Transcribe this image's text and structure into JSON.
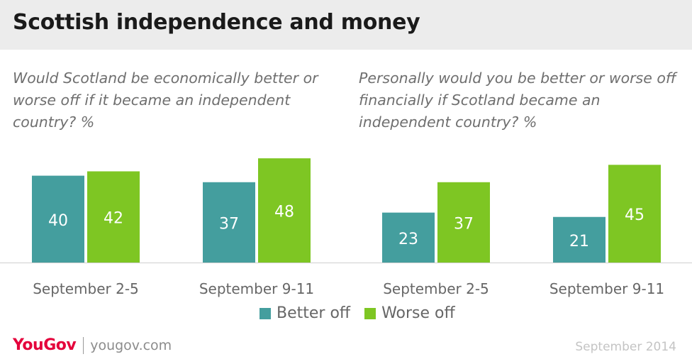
{
  "header": {
    "title": "Scottish independence and money"
  },
  "questions": [
    "Would Scotland be economically better or worse off if it became an independent country? %",
    "Personally would you be better or worse off financially if Scotland became an independent country? %"
  ],
  "chart_data": [
    {
      "type": "bar",
      "title": "Would Scotland be economically better or worse off if it became an independent country? %",
      "categories": [
        "September 2-5",
        "September 9-11"
      ],
      "series": [
        {
          "name": "Better off",
          "values": [
            40,
            37
          ],
          "color": "#449e9e"
        },
        {
          "name": "Worse off",
          "values": [
            42,
            48
          ],
          "color": "#7ec623"
        }
      ],
      "ylim": [
        0,
        50
      ]
    },
    {
      "type": "bar",
      "title": "Personally would you be better or worse off financially if Scotland became an independent country? %",
      "categories": [
        "September 2-5",
        "September 9-11"
      ],
      "series": [
        {
          "name": "Better off",
          "values": [
            23,
            21
          ],
          "color": "#449e9e"
        },
        {
          "name": "Worse off",
          "values": [
            37,
            45
          ],
          "color": "#7ec623"
        }
      ],
      "ylim": [
        0,
        50
      ]
    }
  ],
  "legend": {
    "items": [
      {
        "label": "Better off",
        "color": "#449e9e"
      },
      {
        "label": "Worse off",
        "color": "#7ec623"
      }
    ]
  },
  "footer": {
    "logo": "YouGov",
    "site": "yougov.com",
    "date": "September 2014"
  }
}
